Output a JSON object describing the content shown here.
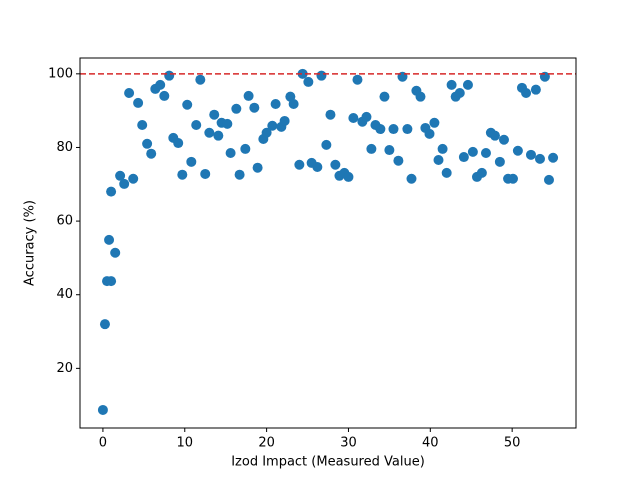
{
  "chart_data": {
    "type": "scatter",
    "x_label": "Izod Impact (Measured Value)",
    "y_label": "Accuracy (%)",
    "color": "#1f77b4",
    "reference_line": {
      "y": 100,
      "color": "#d62728",
      "style": "dashed"
    },
    "xlim": [
      -2.8,
      57.8
    ],
    "ylim": [
      3.8,
      104.3
    ],
    "xticks": [
      0,
      10,
      20,
      30,
      40,
      50
    ],
    "yticks": [
      20,
      40,
      60,
      80,
      100
    ],
    "x": [
      0,
      0.25,
      0.5,
      1.0,
      0.75,
      1.0,
      1.5,
      2.1,
      2.6,
      3.2,
      3.7,
      4.3,
      4.8,
      5.4,
      5.9,
      6.4,
      7.0,
      7.5,
      8.1,
      8.6,
      9.2,
      9.7,
      10.3,
      10.8,
      11.4,
      11.9,
      12.5,
      13.0,
      13.6,
      14.1,
      14.5,
      15.2,
      15.6,
      16.3,
      16.7,
      17.4,
      17.8,
      18.5,
      18.9,
      19.6,
      20.0,
      20.7,
      21.1,
      21.8,
      22.2,
      22.9,
      23.3,
      24.0,
      24.4,
      25.1,
      25.5,
      26.2,
      26.7,
      27.3,
      27.8,
      28.4,
      28.9,
      29.5,
      30.0,
      30.6,
      31.1,
      31.7,
      32.2,
      32.8,
      33.3,
      33.9,
      34.4,
      35.0,
      35.5,
      36.1,
      36.6,
      37.2,
      37.7,
      38.3,
      38.8,
      39.4,
      39.9,
      40.5,
      41.0,
      41.5,
      42.0,
      42.6,
      43.1,
      43.6,
      44.1,
      44.6,
      45.2,
      45.7,
      46.3,
      46.8,
      47.4,
      47.9,
      48.5,
      49.0,
      49.5,
      50.1,
      50.7,
      51.2,
      51.7,
      52.3,
      52.9,
      53.4,
      54.0,
      54.5,
      55.0
    ],
    "values": [
      8.7,
      32,
      43.7,
      43.7,
      54.9,
      68,
      51.4,
      72.3,
      70.1,
      94.8,
      71.5,
      92.1,
      86.1,
      81,
      78.3,
      95.9,
      97,
      94,
      99.5,
      82.6,
      81.2,
      72.6,
      91.6,
      76.1,
      86.1,
      98.4,
      72.8,
      84,
      88.9,
      83.2,
      86.7,
      86.4,
      78.5,
      90.5,
      72.6,
      79.6,
      94,
      90.8,
      74.5,
      82.3,
      84,
      85.9,
      91.8,
      85.6,
      87.2,
      93.8,
      91.8,
      75.3,
      100,
      97.8,
      75.8,
      74.7,
      99.5,
      80.7,
      88.9,
      75.3,
      72.3,
      73.1,
      72,
      88,
      98.4,
      87,
      88.3,
      79.6,
      86.1,
      85,
      93.8,
      79.3,
      85,
      76.4,
      99.2,
      85,
      71.5,
      95.4,
      93.8,
      85.3,
      83.7,
      86.7,
      76.6,
      79.6,
      73.1,
      97,
      93.8,
      94.8,
      77.4,
      97,
      78.8,
      72,
      73.1,
      78.5,
      84,
      83.2,
      76.1,
      82.1,
      71.5,
      71.5,
      79.1,
      96.2,
      94.8,
      78,
      95.7,
      76.9,
      99.2,
      71.2,
      77.2
    ]
  }
}
